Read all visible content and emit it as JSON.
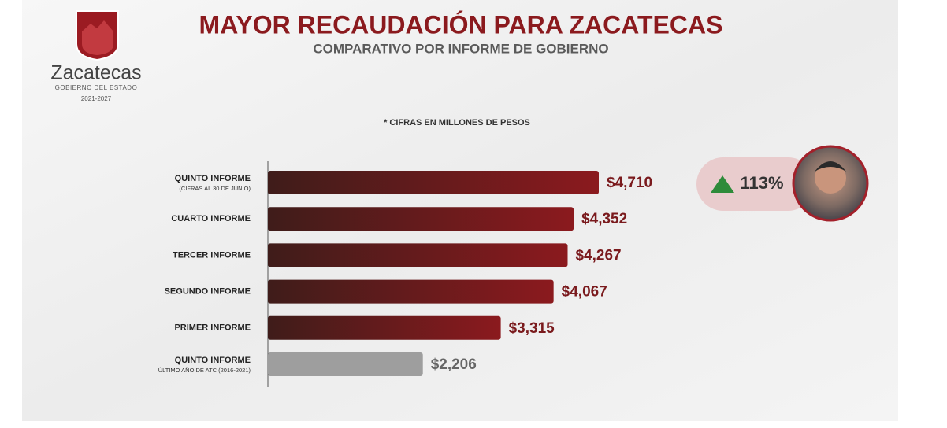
{
  "header": {
    "title": "MAYOR RECAUDACIÓN PARA ZACATECAS",
    "subtitle": "COMPARATIVO POR INFORME DE GOBIERNO",
    "logo_name": "Zacatecas",
    "logo_line1": "GOBIERNO DEL ESTADO",
    "logo_line2": "2021-2027"
  },
  "badge": {
    "label": "113%"
  },
  "chart_data": {
    "type": "bar",
    "orientation": "horizontal",
    "note": "* CIFRAS EN MILLONES DE PESOS",
    "categories": [
      "QUINTO INFORME",
      "CUARTO INFORME",
      "TERCER INFORME",
      "SEGUNDO INFORME",
      "PRIMER INFORME",
      "QUINTO INFORME"
    ],
    "sublabels": [
      "(CIFRAS AL 30 DE JUNIO)",
      null,
      null,
      null,
      null,
      "ÚLTIMO AÑO DE ATC (2016-2021)"
    ],
    "values": [
      4710,
      4352,
      4267,
      4067,
      3315,
      2206
    ],
    "value_labels": [
      "$4,710",
      "$4,352",
      "$4,267",
      "$4,067",
      "$3,315",
      "$2,206"
    ],
    "colors": [
      "#8b1a1e",
      "#8b1a1e",
      "#8b1a1e",
      "#8b1a1e",
      "#8b1a1e",
      "#9e9e9e"
    ],
    "label_colors": [
      "#7a1a1d",
      "#7a1a1d",
      "#7a1a1d",
      "#7a1a1d",
      "#7a1a1d",
      "#666666"
    ]
  }
}
